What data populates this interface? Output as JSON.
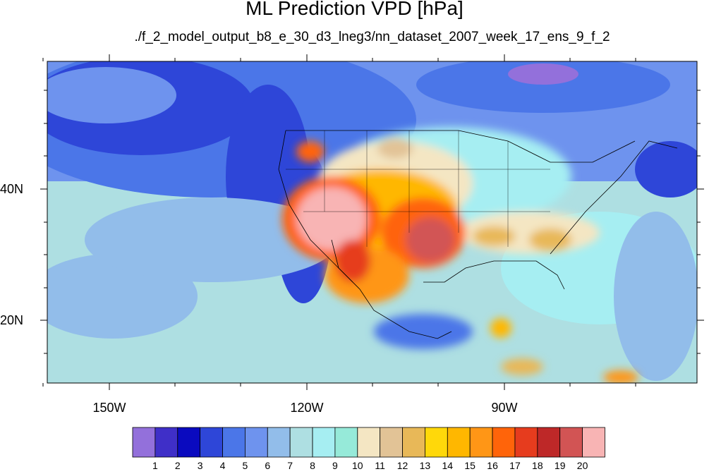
{
  "title": "ML Prediction VPD [hPa]",
  "subtitle": "./f_2_model_output_b8_e_30_d3_lneg3/nn_dataset_2007_week_17_ens_9_f_2",
  "lat_labels": [
    "40N",
    "20N"
  ],
  "lon_labels": [
    "150W",
    "120W",
    "90W"
  ],
  "colorbar": {
    "labels": [
      "1",
      "2",
      "3",
      "4",
      "5",
      "6",
      "7",
      "8",
      "9",
      "10",
      "11",
      "12",
      "13",
      "14",
      "15",
      "16",
      "17",
      "18",
      "19",
      "20"
    ],
    "colors": [
      "#9370DB",
      "#3F2FC8",
      "#0A0ABF",
      "#2E46D8",
      "#4B76E8",
      "#6E93EE",
      "#92BDEA",
      "#AEDFE2",
      "#A6EEF2",
      "#96EAD9",
      "#F4E6C3",
      "#E2C396",
      "#E8B858",
      "#FFD80A",
      "#FFB700",
      "#FF9616",
      "#FF640A",
      "#E63C1E",
      "#BE2828",
      "#D25454",
      "#F8B4B4"
    ]
  }
}
